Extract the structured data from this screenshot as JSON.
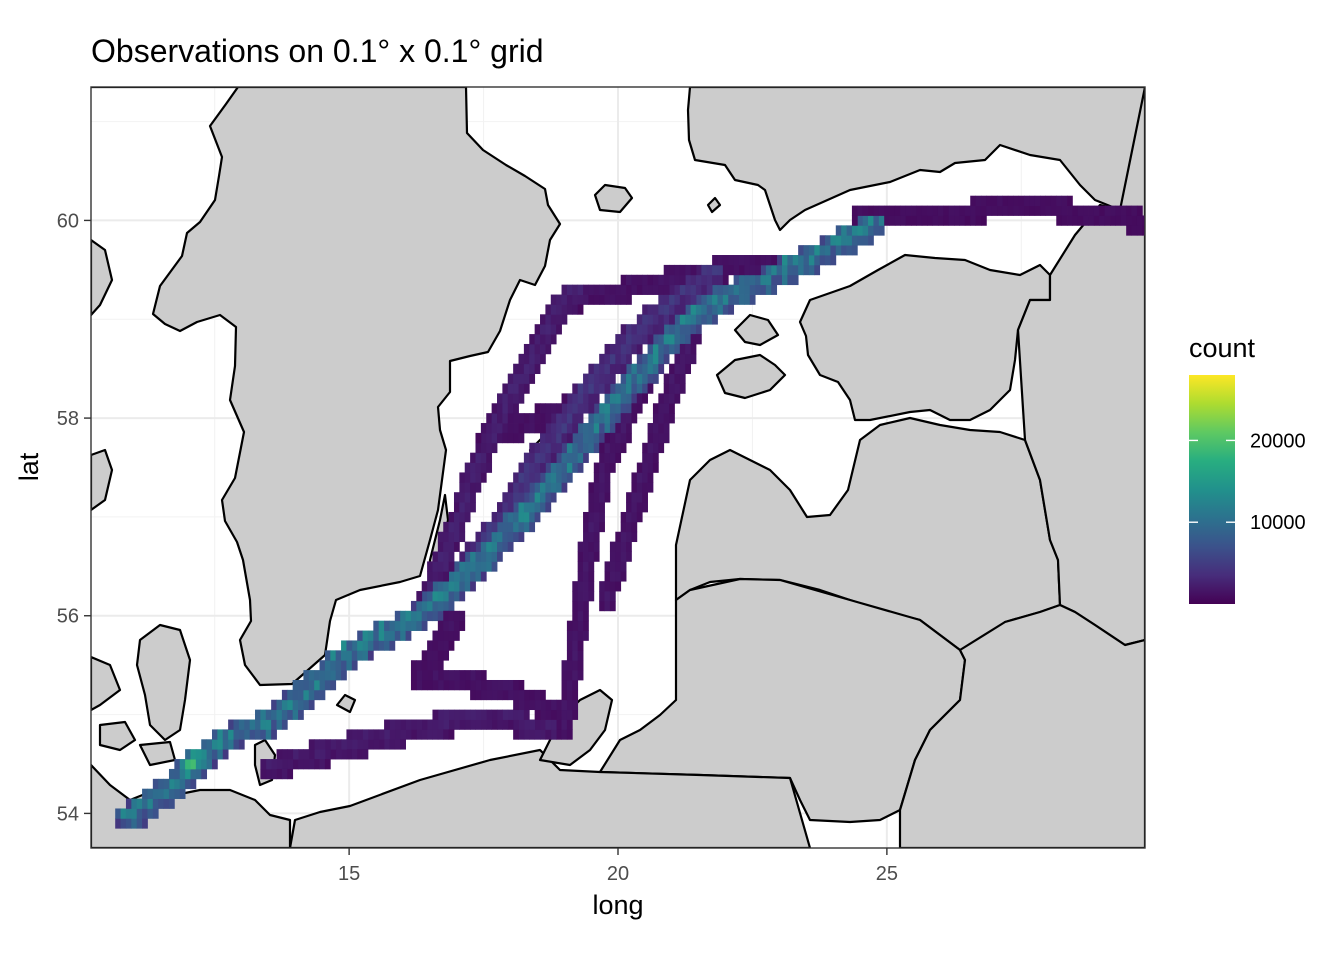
{
  "chart_data": {
    "type": "heatmap",
    "title": "Observations on 0.1° x 0.1° grid",
    "xlabel": "long",
    "ylabel": "lat",
    "xlim": [
      10.2,
      29.8
    ],
    "ylim": [
      53.65,
      61.35
    ],
    "x_ticks": [
      15,
      20,
      25
    ],
    "y_ticks": [
      54,
      56,
      58,
      60
    ],
    "x_tick_labels": [
      "15",
      "20",
      "25"
    ],
    "y_tick_labels": [
      "54",
      "56",
      "58",
      "60"
    ],
    "grid": true,
    "cell_size_deg": 0.1,
    "land_color": "#cccccc",
    "water_color": "#ffffff",
    "legend": {
      "title": "count",
      "placement": "right",
      "colormap": "viridis",
      "min": 0,
      "max": 28000,
      "ticks": [
        10000,
        20000
      ],
      "tick_labels": [
        "10000",
        "20000"
      ]
    },
    "tracks": [
      {
        "points": [
          [
            10.8,
            53.95
          ],
          [
            11.6,
            54.25
          ],
          [
            12.2,
            54.55
          ],
          [
            12.7,
            54.8
          ],
          [
            13.5,
            54.95
          ],
          [
            14.3,
            55.3
          ],
          [
            15.0,
            55.65
          ],
          [
            16.2,
            56.0
          ],
          [
            17.0,
            56.35
          ],
          [
            18.0,
            56.9
          ],
          [
            18.8,
            57.4
          ],
          [
            19.6,
            57.95
          ],
          [
            20.3,
            58.4
          ],
          [
            21.0,
            58.85
          ],
          [
            21.8,
            59.2
          ],
          [
            22.8,
            59.45
          ],
          [
            23.8,
            59.7
          ],
          [
            24.8,
            60.0
          ]
        ],
        "peak": 16000,
        "width": 0.15
      },
      {
        "points": [
          [
            12.0,
            54.45
          ],
          [
            12.2,
            54.6
          ]
        ],
        "peak": 28000,
        "width": 0.1
      },
      {
        "points": [
          [
            17.1,
            56.45
          ],
          [
            18.0,
            57.1
          ],
          [
            18.7,
            57.75
          ],
          [
            19.5,
            58.35
          ],
          [
            20.2,
            58.8
          ],
          [
            21.0,
            59.2
          ],
          [
            21.8,
            59.5
          ]
        ],
        "peak": 6000,
        "width": 0.15
      },
      {
        "points": [
          [
            16.4,
            56.1
          ],
          [
            16.9,
            56.8
          ],
          [
            17.3,
            57.4
          ],
          [
            17.7,
            57.9
          ],
          [
            18.2,
            58.4
          ],
          [
            18.6,
            58.8
          ],
          [
            18.9,
            59.1
          ],
          [
            19.3,
            59.3
          ]
        ],
        "peak": 3500,
        "width": 0.1
      },
      {
        "points": [
          [
            19.0,
            54.9
          ],
          [
            19.2,
            55.6
          ],
          [
            19.35,
            56.3
          ],
          [
            19.55,
            57.0
          ],
          [
            19.8,
            57.6
          ],
          [
            20.3,
            58.2
          ],
          [
            20.8,
            58.7
          ],
          [
            21.3,
            59.1
          ]
        ],
        "peak": 2500,
        "width": 0.1
      },
      {
        "points": [
          [
            19.8,
            56.2
          ],
          [
            20.2,
            56.9
          ],
          [
            20.6,
            57.6
          ],
          [
            21.0,
            58.3
          ],
          [
            21.4,
            58.9
          ]
        ],
        "peak": 2500,
        "width": 0.1
      },
      {
        "points": [
          [
            18.7,
            54.9
          ],
          [
            17.4,
            55.0
          ],
          [
            16.3,
            54.9
          ],
          [
            15.2,
            54.75
          ],
          [
            14.2,
            54.6
          ],
          [
            13.5,
            54.5
          ]
        ],
        "peak": 3000,
        "width": 0.15
      },
      {
        "points": [
          [
            19.0,
            55.0
          ],
          [
            18.2,
            55.2
          ],
          [
            17.1,
            55.35
          ],
          [
            16.3,
            55.4
          ],
          [
            16.6,
            55.6
          ],
          [
            17.0,
            56.0
          ]
        ],
        "peak": 2000,
        "width": 0.1
      },
      {
        "points": [
          [
            19.2,
            59.2
          ],
          [
            20.5,
            59.35
          ],
          [
            21.8,
            59.5
          ],
          [
            22.8,
            59.6
          ]
        ],
        "peak": 2000,
        "width": 0.1
      },
      {
        "points": [
          [
            24.5,
            60.1
          ],
          [
            25.5,
            60.05
          ],
          [
            26.5,
            60.1
          ],
          [
            27.5,
            60.15
          ],
          [
            28.5,
            60.1
          ],
          [
            29.7,
            60.0
          ]
        ],
        "peak": 1500,
        "width": 0.1
      },
      {
        "points": [
          [
            17.5,
            57.8
          ],
          [
            18.3,
            57.95
          ],
          [
            19.0,
            58.1
          ],
          [
            19.5,
            58.15
          ]
        ],
        "peak": 2000,
        "width": 0.1
      }
    ]
  }
}
